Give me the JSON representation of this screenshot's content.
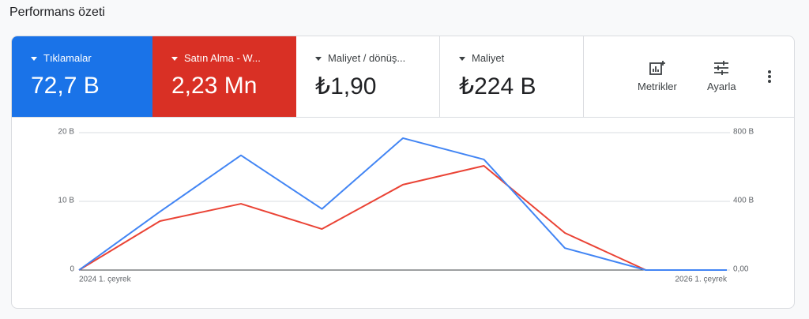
{
  "header": {
    "title": "Performans özeti"
  },
  "metrics": [
    {
      "label": "Tıklamalar",
      "value": "72,7 B"
    },
    {
      "label": "Satın Alma - W...",
      "value": "2,23 Mn"
    },
    {
      "label": "Maliyet / dönüş...",
      "value": "₺1,90"
    },
    {
      "label": "Maliyet",
      "value": "₺224 B"
    }
  ],
  "toolbar": {
    "metrics_button": "Metrikler",
    "adjust_button": "Ayarla"
  },
  "chart_data": {
    "type": "line",
    "categories": [
      "2024 1. çeyrek",
      null,
      null,
      null,
      null,
      null,
      null,
      null,
      "2026 1. çeyrek"
    ],
    "series": [
      {
        "name": "Tıklamalar",
        "color": "#4285f4",
        "values": [
          0,
          8.5,
          16.7,
          8.9,
          19.2,
          16.1,
          3.2,
          0,
          0
        ]
      },
      {
        "name": "Satın Alma - W...",
        "color": "#ea4335",
        "axis": "y2",
        "values": [
          0,
          285,
          386,
          239,
          497,
          607,
          216,
          0,
          0
        ]
      }
    ],
    "ylim": [
      0,
      20
    ],
    "yticks": [
      0,
      {
        "value": 10,
        "label": "10 B"
      },
      {
        "value": 20,
        "label": "20 B"
      }
    ],
    "y2lim": [
      0,
      800
    ],
    "y2ticks": [
      {
        "value": 0,
        "label": "0,00"
      },
      {
        "value": 400,
        "label": "400 B"
      },
      {
        "value": 800,
        "label": "800 B"
      }
    ],
    "grid": true
  }
}
